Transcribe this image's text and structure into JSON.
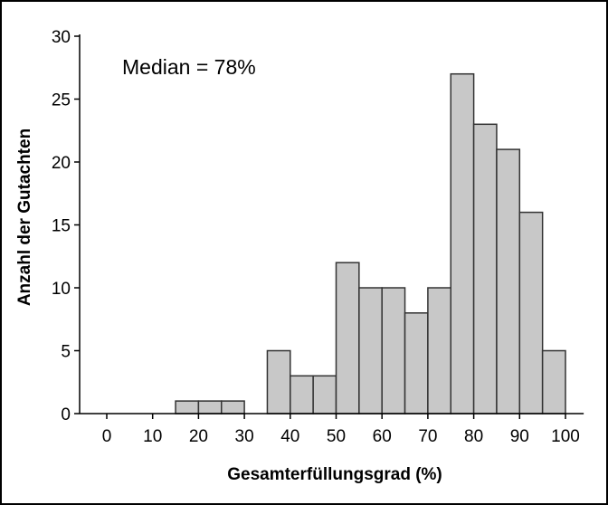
{
  "chart_data": {
    "type": "bar",
    "title": "",
    "annotation": "Median = 78%",
    "xlabel": "Gesamterfüllungsgrad (%)",
    "ylabel": "Anzahl der Gutachten",
    "xlim": [
      -5,
      102
    ],
    "ylim": [
      0,
      30
    ],
    "x_ticks": [
      0,
      10,
      20,
      30,
      40,
      50,
      60,
      70,
      80,
      90,
      100
    ],
    "y_ticks": [
      0,
      5,
      10,
      15,
      20,
      25,
      30
    ],
    "bin_width": 5,
    "bin_starts": [
      15,
      20,
      25,
      35,
      40,
      45,
      50,
      55,
      60,
      65,
      70,
      75,
      80,
      85,
      90,
      95
    ],
    "values": [
      1,
      1,
      1,
      5,
      3,
      3,
      12,
      10,
      10,
      8,
      10,
      27,
      23,
      21,
      16,
      5
    ],
    "grid": false,
    "bar_color": "#c8c8c8",
    "bar_edge_color": "#333333"
  }
}
